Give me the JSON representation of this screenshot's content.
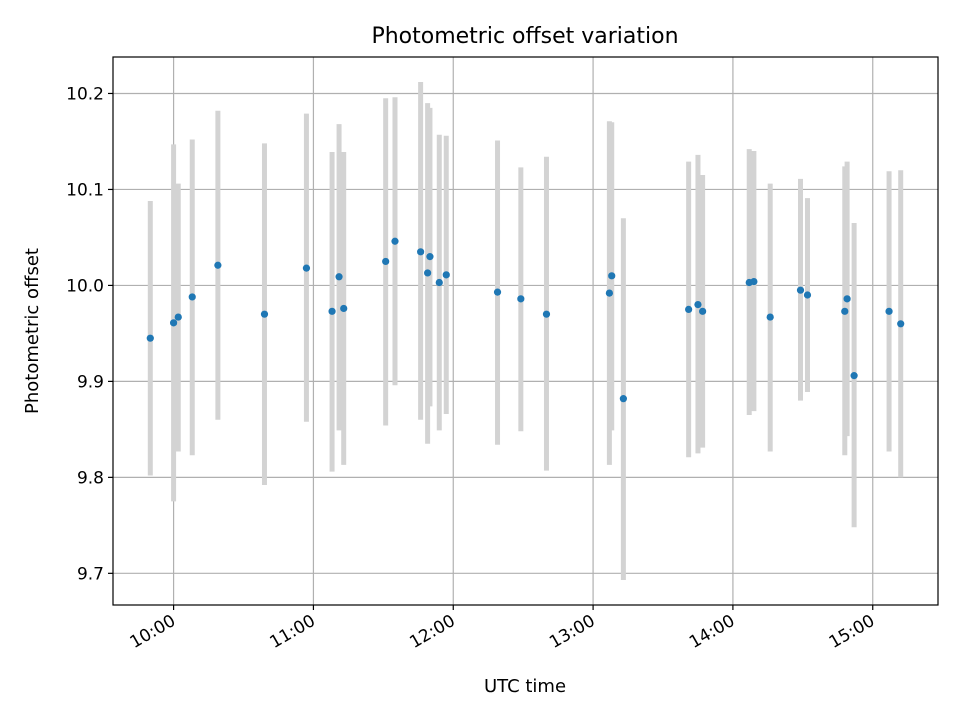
{
  "chart_data": {
    "type": "scatter",
    "title": "Photometric offset variation",
    "xlabel": "UTC time",
    "ylabel": "Photometric offset",
    "x_ticks": [
      "10:00",
      "11:00",
      "12:00",
      "13:00",
      "14:00",
      "15:00"
    ],
    "y_ticks": [
      "9.7",
      "9.8",
      "9.9",
      "10.0",
      "10.1",
      "10.2"
    ],
    "xlim": [
      "09:34",
      "15:28"
    ],
    "ylim": [
      9.667,
      10.238
    ],
    "grid": true,
    "colors": {
      "marker": "#1f77b4",
      "errorbar": "#d3d3d3",
      "grid": "#b0b0b0"
    },
    "points": [
      {
        "time": "09:50",
        "y": 9.945,
        "err_low": 9.802,
        "err_high": 10.088
      },
      {
        "time": "10:00",
        "y": 9.961,
        "err_low": 9.775,
        "err_high": 10.147
      },
      {
        "time": "10:02",
        "y": 9.967,
        "err_low": 9.827,
        "err_high": 10.106
      },
      {
        "time": "10:08",
        "y": 9.988,
        "err_low": 9.823,
        "err_high": 10.152
      },
      {
        "time": "10:19",
        "y": 10.021,
        "err_low": 9.86,
        "err_high": 10.182
      },
      {
        "time": "10:39",
        "y": 9.97,
        "err_low": 9.792,
        "err_high": 10.148
      },
      {
        "time": "10:57",
        "y": 10.018,
        "err_low": 9.858,
        "err_high": 10.179
      },
      {
        "time": "11:08",
        "y": 9.973,
        "err_low": 9.806,
        "err_high": 10.139
      },
      {
        "time": "11:11",
        "y": 10.009,
        "err_low": 9.849,
        "err_high": 10.168
      },
      {
        "time": "11:13",
        "y": 9.976,
        "err_low": 9.813,
        "err_high": 10.139
      },
      {
        "time": "11:31",
        "y": 10.025,
        "err_low": 9.854,
        "err_high": 10.195
      },
      {
        "time": "11:35",
        "y": 10.046,
        "err_low": 9.896,
        "err_high": 10.196
      },
      {
        "time": "11:46",
        "y": 10.035,
        "err_low": 9.86,
        "err_high": 10.212
      },
      {
        "time": "11:49",
        "y": 10.013,
        "err_low": 9.835,
        "err_high": 10.19
      },
      {
        "time": "11:50",
        "y": 10.03,
        "err_low": 9.874,
        "err_high": 10.185
      },
      {
        "time": "11:54",
        "y": 10.003,
        "err_low": 9.849,
        "err_high": 10.157
      },
      {
        "time": "11:57",
        "y": 10.011,
        "err_low": 9.866,
        "err_high": 10.156
      },
      {
        "time": "12:19",
        "y": 9.993,
        "err_low": 9.834,
        "err_high": 10.151
      },
      {
        "time": "12:29",
        "y": 9.986,
        "err_low": 9.848,
        "err_high": 10.123
      },
      {
        "time": "12:40",
        "y": 9.97,
        "err_low": 9.807,
        "err_high": 10.134
      },
      {
        "time": "13:07",
        "y": 9.992,
        "err_low": 9.813,
        "err_high": 10.171
      },
      {
        "time": "13:08",
        "y": 10.01,
        "err_low": 9.849,
        "err_high": 10.17
      },
      {
        "time": "13:13",
        "y": 9.882,
        "err_low": 9.693,
        "err_high": 10.07
      },
      {
        "time": "13:41",
        "y": 9.975,
        "err_low": 9.821,
        "err_high": 10.129
      },
      {
        "time": "13:45",
        "y": 9.98,
        "err_low": 9.825,
        "err_high": 10.136
      },
      {
        "time": "13:47",
        "y": 9.973,
        "err_low": 9.831,
        "err_high": 10.115
      },
      {
        "time": "14:07",
        "y": 10.003,
        "err_low": 9.865,
        "err_high": 10.142
      },
      {
        "time": "14:09",
        "y": 10.004,
        "err_low": 9.869,
        "err_high": 10.14
      },
      {
        "time": "14:16",
        "y": 9.967,
        "err_low": 9.827,
        "err_high": 10.106
      },
      {
        "time": "14:29",
        "y": 9.995,
        "err_low": 9.88,
        "err_high": 10.111
      },
      {
        "time": "14:32",
        "y": 9.99,
        "err_low": 9.889,
        "err_high": 10.091
      },
      {
        "time": "14:48",
        "y": 9.973,
        "err_low": 9.823,
        "err_high": 10.124
      },
      {
        "time": "14:49",
        "y": 9.986,
        "err_low": 9.843,
        "err_high": 10.129
      },
      {
        "time": "14:52",
        "y": 9.906,
        "err_low": 9.748,
        "err_high": 10.065
      },
      {
        "time": "15:07",
        "y": 9.973,
        "err_low": 9.827,
        "err_high": 10.119
      },
      {
        "time": "15:12",
        "y": 9.96,
        "err_low": 9.8,
        "err_high": 10.12
      }
    ]
  }
}
